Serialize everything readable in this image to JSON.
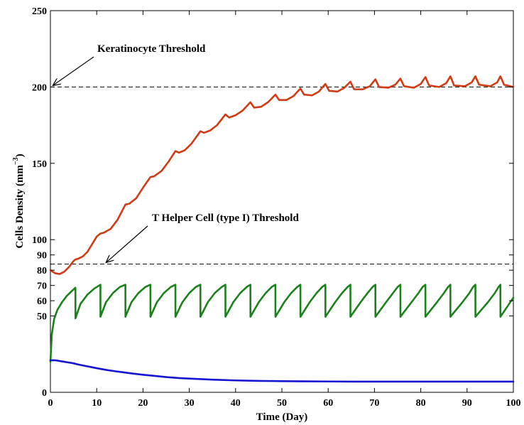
{
  "chart_data": {
    "type": "line",
    "title": "",
    "xlabel": "Time (Day)",
    "ylabel_main": "Cells Density (mm",
    "ylabel_sup": "−3",
    "ylabel_close": ")",
    "xlim": [
      0,
      100
    ],
    "ylim": [
      0,
      250
    ],
    "grid": false,
    "legend": "none",
    "x_ticks": [
      "0",
      "10",
      "20",
      "30",
      "40",
      "50",
      "60",
      "70",
      "80",
      "90",
      "100"
    ],
    "x_tick_values": [
      0,
      10,
      20,
      30,
      40,
      50,
      60,
      70,
      80,
      90,
      100
    ],
    "y_ticks": [
      "0",
      "50",
      "60",
      "70",
      "80",
      "90",
      "100",
      "150",
      "200",
      "250"
    ],
    "y_tick_values": [
      0,
      50,
      60,
      70,
      80,
      90,
      100,
      150,
      200,
      250
    ],
    "thresholds": [
      {
        "label": "Keratinocyte Threshold",
        "y": 200,
        "style": "dashed",
        "color": "#000000",
        "arrow_to_x": 0.5
      },
      {
        "label": "T Helper Cell (type I) Threshold",
        "y": 84,
        "style": "dashed",
        "color": "#000000",
        "arrow_to_x": 12
      }
    ],
    "series": [
      {
        "color": "#d23a14",
        "x": [
          0,
          1,
          2,
          3,
          4,
          5,
          5.4,
          6,
          7,
          8,
          9,
          10,
          10.8,
          11.5,
          13,
          14.5,
          16.2,
          17,
          18.5,
          20,
          21.6,
          22.4,
          24,
          25.5,
          27,
          27.8,
          29,
          30.5,
          32.4,
          33.2,
          34.5,
          36,
          37.8,
          38.6,
          40,
          41.5,
          43.2,
          44,
          45.5,
          47,
          48.6,
          49.4,
          51,
          52.5,
          54,
          54.8,
          56.5,
          58,
          59.4,
          60.2,
          62,
          63.5,
          64.8,
          65.6,
          67.5,
          69,
          70.2,
          71,
          73,
          74.5,
          75.6,
          76.4,
          78.5,
          80,
          81,
          81.8,
          84,
          85.5,
          86.4,
          87.2,
          89.5,
          91,
          91.8,
          92.6,
          95,
          96.5,
          97.2,
          98,
          100
        ],
        "y": [
          80,
          78,
          77.5,
          79,
          82,
          86,
          87,
          87.5,
          89,
          92,
          97,
          102,
          104,
          104.5,
          107,
          113,
          123,
          123.5,
          127,
          134,
          141,
          141.5,
          145,
          151,
          158,
          157,
          158.5,
          163,
          171,
          170,
          171.5,
          175,
          182,
          180,
          181.5,
          184.5,
          190,
          186.5,
          187,
          190,
          195,
          191.5,
          191.5,
          194,
          199,
          195,
          194.5,
          197,
          202,
          197.5,
          197,
          199.5,
          203.5,
          198.5,
          198.5,
          200.5,
          205,
          200,
          199.5,
          201.5,
          205.5,
          200.5,
          199.5,
          202,
          206.5,
          201,
          200,
          202.5,
          207,
          201,
          200.5,
          203,
          207,
          201.5,
          200.5,
          203,
          207,
          201.5,
          200
        ]
      },
      {
        "color": "#1a821a",
        "x": [
          0,
          0.3,
          0.8,
          1.5,
          2.5,
          3.5,
          4.5,
          5.4,
          5.41,
          6.5,
          8,
          9.5,
          10.8,
          10.81,
          12,
          13.5,
          15,
          16.2,
          16.21,
          17.5,
          19,
          20.5,
          21.6,
          21.61,
          23,
          24.5,
          26,
          27,
          27.01,
          28.5,
          30,
          31.4,
          32.4,
          32.41,
          34,
          35.5,
          37,
          37.8,
          37.81,
          39.5,
          41,
          42.4,
          43.2,
          43.21,
          45,
          46.5,
          47.8,
          48.6,
          48.61,
          50.5,
          52,
          53.3,
          54,
          54.01,
          56,
          57.5,
          58.7,
          59.4,
          59.41,
          61.5,
          63,
          64.2,
          64.8,
          64.81,
          67,
          68.5,
          69.6,
          70.2,
          70.21,
          72.5,
          74,
          75,
          75.6,
          75.61,
          78,
          79.5,
          80.4,
          81,
          81.01,
          83.5,
          85,
          85.9,
          86.4,
          86.41,
          89,
          90.5,
          91.3,
          91.8,
          91.81,
          94.5,
          96,
          96.8,
          97.2,
          97.21,
          100
        ],
        "y": [
          20,
          38,
          48,
          54,
          59,
          63,
          66,
          68.5,
          48.5,
          58,
          64,
          68,
          70.5,
          49.5,
          59,
          65,
          69,
          70.5,
          49.5,
          59,
          65,
          69,
          70.5,
          49.5,
          59,
          65,
          69,
          70.5,
          49.5,
          59,
          65,
          69,
          70.5,
          49.5,
          59,
          65,
          69,
          70.5,
          49.5,
          59,
          65,
          69,
          70.5,
          49.5,
          59,
          65,
          69,
          70.5,
          49.5,
          59,
          65,
          69,
          70.5,
          49.5,
          59,
          65,
          69,
          70.5,
          49.5,
          59,
          65,
          69,
          70.5,
          49.5,
          59,
          65,
          69,
          70.5,
          49.5,
          59,
          65,
          69,
          70.5,
          49.5,
          59,
          65,
          69,
          70.5,
          49.5,
          59,
          65,
          69,
          70.5,
          49.5,
          59,
          65,
          69,
          70.5,
          49.5,
          59,
          65,
          69,
          70.5,
          49.5,
          62
        ]
      },
      {
        "color": "#1414d2",
        "x": [
          0,
          1,
          2,
          3,
          4,
          5,
          6,
          8,
          10,
          12,
          14,
          16,
          18,
          20,
          22,
          25,
          28,
          30,
          35,
          40,
          45,
          50,
          55,
          60,
          65,
          70,
          75,
          80,
          85,
          90,
          95,
          100
        ],
        "y": [
          21,
          21,
          20.5,
          20,
          19.5,
          19,
          18.2,
          17,
          15.8,
          14.7,
          13.8,
          13,
          12.2,
          11.5,
          10.9,
          10,
          9.3,
          9,
          8.3,
          7.8,
          7.5,
          7.3,
          7.2,
          7.1,
          7,
          7,
          7,
          7,
          7,
          7,
          7,
          7
        ]
      }
    ]
  }
}
